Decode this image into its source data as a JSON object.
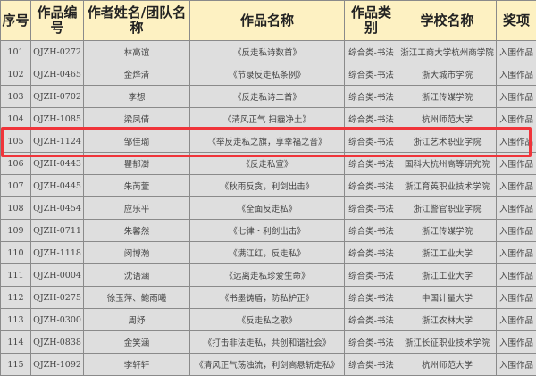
{
  "headers": [
    "序号",
    "作品编号",
    "作者姓名/团队名称",
    "作品名称",
    "作品类别",
    "学校名称",
    "奖项"
  ],
  "highlight_color": "#f0343a",
  "highlighted_row": "105",
  "rows": [
    [
      "101",
      "QJZH-0272",
      "林高谊",
      "《反走私诗数首》",
      "综合类-书法",
      "浙江工商大学杭州商学院",
      "入围作品"
    ],
    [
      "102",
      "QJZH-0465",
      "金烨清",
      "《节录反走私条例》",
      "综合类-书法",
      "浙大城市学院",
      "入围作品"
    ],
    [
      "103",
      "QJZH-0702",
      "李想",
      "《反走私诗二首》",
      "综合类-书法",
      "浙江传媒学院",
      "入围作品"
    ],
    [
      "104",
      "QJZH-1085",
      "梁凤倩",
      "《清风正气 扫霾净土》",
      "综合类-书法",
      "杭州师范大学",
      "入围作品"
    ],
    [
      "105",
      "QJZH-1124",
      "邹佳瑜",
      "《举反走私之旗，享幸福之音》",
      "综合类-书法",
      "浙江艺术职业学院",
      "入围作品"
    ],
    [
      "106",
      "QJZH-0443",
      "瞿郁澍",
      "《反走私宣》",
      "综合类-书法",
      "国科大杭州高等研究院",
      "入围作品"
    ],
    [
      "107",
      "QJZH-0445",
      "朱芮萱",
      "《秋雨反贪，利剑出击》",
      "综合类-书法",
      "浙江育英职业技术学院",
      "入围作品"
    ],
    [
      "108",
      "QJZH-0454",
      "应乐平",
      "《全面反走私》",
      "综合类-书法",
      "浙江警官职业学院",
      "入围作品"
    ],
    [
      "109",
      "QJZH-0711",
      "朱馨然",
      "《七律・利剑出击》",
      "综合类-书法",
      "浙江传媒学院",
      "入围作品"
    ],
    [
      "110",
      "QJZH-1118",
      "闵博瀚",
      "《满江红，反走私》",
      "综合类-书法",
      "浙江工业大学",
      "入围作品"
    ],
    [
      "111",
      "QJZH-0004",
      "沈语涵",
      "《远离走私珍爱生命》",
      "综合类-书法",
      "浙江工业大学",
      "入围作品"
    ],
    [
      "112",
      "QJZH-0275",
      "徐玉萍、鲍雨曦",
      "《书墨铸盾，防私护正》",
      "综合类-书法",
      "中国计量大学",
      "入围作品"
    ],
    [
      "113",
      "QJZH-0300",
      "周妤",
      "《反走私之歌》",
      "综合类-书法",
      "浙江农林大学",
      "入围作品"
    ],
    [
      "114",
      "QJZH-0838",
      "金笑涵",
      "《打击非法走私，共创和谐社会》",
      "综合类-书法",
      "浙江长征职业技术学院",
      "入围作品"
    ],
    [
      "115",
      "QJZH-1092",
      "李轩轩",
      "《清风正气荡浊流，利剑高悬斩走私》",
      "综合类-书法",
      "杭州师范大学",
      "入围作品"
    ]
  ]
}
